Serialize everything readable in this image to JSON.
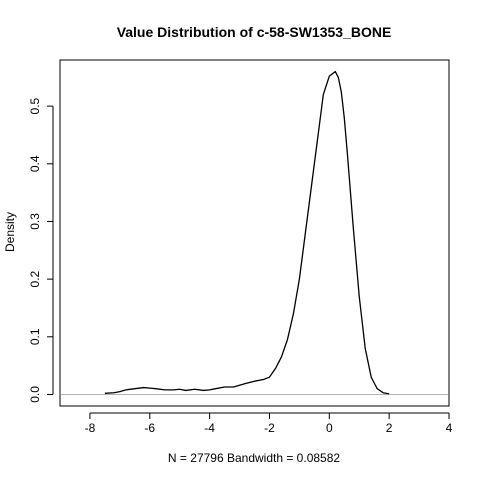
{
  "chart_data": {
    "type": "line",
    "title": "Value Distribution of c-58-SW1353_BONE",
    "xlabel": "N = 27796   Bandwidth = 0.08582",
    "ylabel": "Density",
    "xlim": [
      -9,
      4
    ],
    "ylim": [
      -0.02,
      0.58
    ],
    "x_ticks": [
      -8,
      -6,
      -4,
      -2,
      0,
      2,
      4
    ],
    "x_tick_labels": [
      "-8",
      "-6",
      "-4",
      "-2",
      "0",
      "2",
      "4"
    ],
    "y_ticks": [
      0.0,
      0.1,
      0.2,
      0.3,
      0.4,
      0.5
    ],
    "y_tick_labels": [
      "0.0",
      "0.1",
      "0.2",
      "0.3",
      "0.4",
      "0.5"
    ],
    "zero_baseline": true,
    "series": [
      {
        "x": [
          -7.5,
          -7.2,
          -7.0,
          -6.8,
          -6.5,
          -6.2,
          -6.0,
          -5.8,
          -5.5,
          -5.2,
          -5.0,
          -4.8,
          -4.5,
          -4.2,
          -4.0,
          -3.8,
          -3.5,
          -3.2,
          -3.0,
          -2.8,
          -2.5,
          -2.2,
          -2.0,
          -1.8,
          -1.6,
          -1.4,
          -1.2,
          -1.0,
          -0.8,
          -0.6,
          -0.4,
          -0.2,
          0.0,
          0.1,
          0.2,
          0.3,
          0.4,
          0.5,
          0.6,
          0.8,
          1.0,
          1.2,
          1.4,
          1.6,
          1.8,
          2.0
        ],
        "y": [
          0.002,
          0.003,
          0.005,
          0.008,
          0.01,
          0.012,
          0.011,
          0.01,
          0.008,
          0.008,
          0.009,
          0.007,
          0.009,
          0.007,
          0.008,
          0.01,
          0.013,
          0.013,
          0.016,
          0.019,
          0.023,
          0.026,
          0.03,
          0.045,
          0.065,
          0.095,
          0.14,
          0.2,
          0.28,
          0.36,
          0.44,
          0.52,
          0.552,
          0.556,
          0.56,
          0.55,
          0.525,
          0.48,
          0.42,
          0.29,
          0.17,
          0.08,
          0.03,
          0.01,
          0.003,
          0.001
        ]
      }
    ]
  }
}
